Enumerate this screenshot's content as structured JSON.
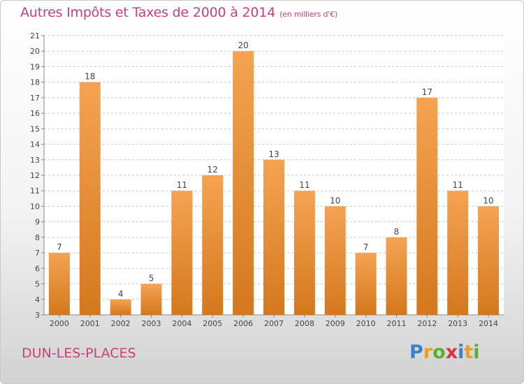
{
  "title": "Autres Impôts et Taxes de 2000 à 2014",
  "title_unit": "(en milliers d'€)",
  "place_name": "DUN-LES-PLACES",
  "logo": {
    "letters": [
      "P",
      "r",
      "o",
      "x",
      "i",
      "t",
      "i"
    ],
    "colors": [
      "#3a7fd0",
      "#e8a020",
      "#58b030",
      "#e03040",
      "#3a7fd0",
      "#e8a020",
      "#58b030"
    ]
  },
  "colors": {
    "title": "#c8407a",
    "bar_top": "#f5a352",
    "bar_bottom": "#d4781e",
    "grid": "#c8c8c8"
  },
  "chart_data": {
    "type": "bar",
    "categories": [
      "2000",
      "2001",
      "2002",
      "2003",
      "2004",
      "2005",
      "2006",
      "2007",
      "2008",
      "2009",
      "2010",
      "2011",
      "2012",
      "2013",
      "2014"
    ],
    "values": [
      7,
      18,
      4,
      5,
      11,
      12,
      20,
      13,
      11,
      10,
      7,
      8,
      17,
      11,
      10
    ],
    "ylim": [
      3,
      21
    ],
    "yticks": [
      3,
      4,
      5,
      6,
      7,
      8,
      9,
      10,
      11,
      12,
      13,
      14,
      15,
      16,
      17,
      18,
      19,
      20,
      21
    ],
    "grid": true,
    "data_labels": true
  }
}
